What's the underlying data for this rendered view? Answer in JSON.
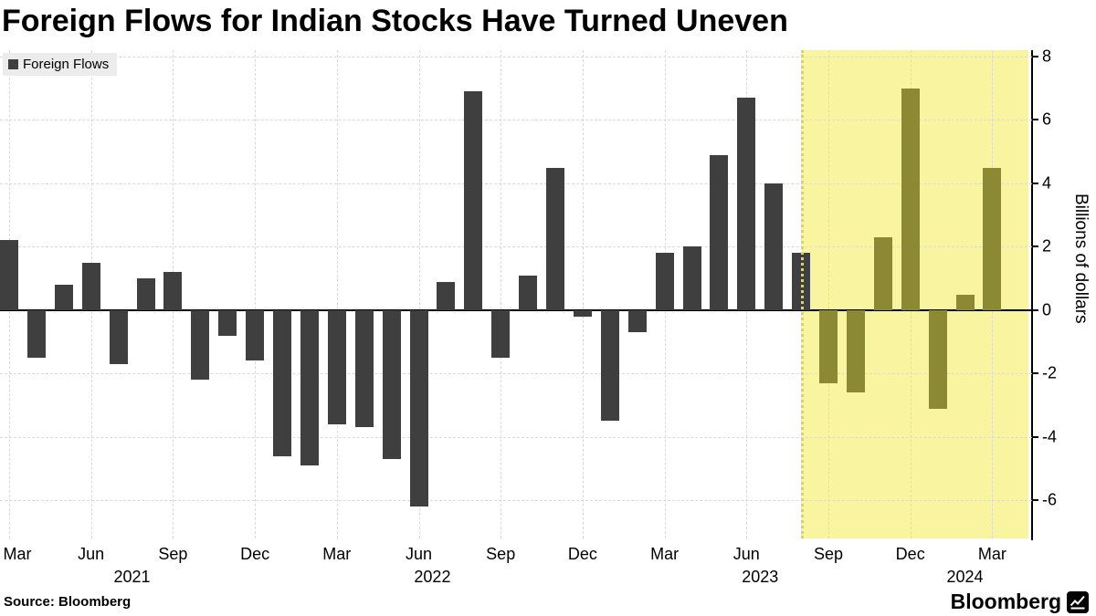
{
  "title": "Foreign Flows for Indian Stocks Have Turned Uneven",
  "legend": {
    "label": "Foreign Flows"
  },
  "source_text": "Source: Bloomberg",
  "brand": {
    "name": "Bloomberg"
  },
  "colors": {
    "bar": "#3f3f3f",
    "highlight_bar": "#8b8933",
    "highlight_bg": "#f9f4a0",
    "highlight_border": "#ddd64e",
    "grid": "#d9d9d9",
    "axis": "#000000",
    "legend_bg": "#ececec"
  },
  "chart_data": {
    "type": "bar",
    "title": "Foreign Flows for Indian Stocks Have Turned Uneven",
    "series_name": "Foreign Flows",
    "ylabel": "Billions of dollars",
    "unit": "billions of US dollars",
    "ylim": [
      -7.2,
      8.2
    ],
    "yticks": [
      8,
      6,
      4,
      2,
      0,
      -2,
      -4,
      -6
    ],
    "grid": true,
    "legend_position": "top-left",
    "months": [
      "Mar 2021",
      "Apr 2021",
      "May 2021",
      "Jun 2021",
      "Jul 2021",
      "Aug 2021",
      "Sep 2021",
      "Oct 2021",
      "Nov 2021",
      "Dec 2021",
      "Jan 2022",
      "Feb 2022",
      "Mar 2022",
      "Apr 2022",
      "May 2022",
      "Jun 2022",
      "Jul 2022",
      "Aug 2022",
      "Sep 2022",
      "Oct 2022",
      "Nov 2022",
      "Dec 2022",
      "Jan 2023",
      "Feb 2023",
      "Mar 2023",
      "Apr 2023",
      "May 2023",
      "Jun 2023",
      "Jul 2023",
      "Aug 2023",
      "Sep 2023",
      "Oct 2023",
      "Nov 2023",
      "Dec 2023",
      "Jan 2024",
      "Feb 2024",
      "Mar 2024"
    ],
    "values": [
      2.2,
      -1.5,
      0.8,
      1.5,
      -1.7,
      1.0,
      1.2,
      -2.2,
      -0.8,
      -1.6,
      -4.6,
      -4.9,
      -3.6,
      -3.7,
      -4.7,
      -6.2,
      0.9,
      6.9,
      -1.5,
      1.1,
      4.5,
      -0.2,
      -3.5,
      -0.7,
      1.8,
      2.0,
      4.9,
      6.7,
      4.0,
      1.8,
      -2.3,
      -2.6,
      2.3,
      7.0,
      -3.1,
      0.5,
      4.5
    ],
    "xticks": [
      {
        "label": "Mar",
        "index": 0
      },
      {
        "label": "Jun",
        "index": 3
      },
      {
        "label": "Sep",
        "index": 6
      },
      {
        "label": "Dec",
        "index": 9
      },
      {
        "label": "Mar",
        "index": 12
      },
      {
        "label": "Jun",
        "index": 15
      },
      {
        "label": "Sep",
        "index": 18
      },
      {
        "label": "Dec",
        "index": 21
      },
      {
        "label": "Mar",
        "index": 24
      },
      {
        "label": "Jun",
        "index": 27
      },
      {
        "label": "Sep",
        "index": 30
      },
      {
        "label": "Dec",
        "index": 33
      },
      {
        "label": "Mar",
        "index": 36
      }
    ],
    "year_labels": [
      {
        "label": "2021",
        "from": 0,
        "to": 9
      },
      {
        "label": "2022",
        "from": 10,
        "to": 21
      },
      {
        "label": "2023",
        "from": 22,
        "to": 33
      },
      {
        "label": "2024",
        "from": 34,
        "to": 36
      }
    ],
    "highlight": {
      "region_start_index": 29,
      "color_from_index": 30
    }
  }
}
